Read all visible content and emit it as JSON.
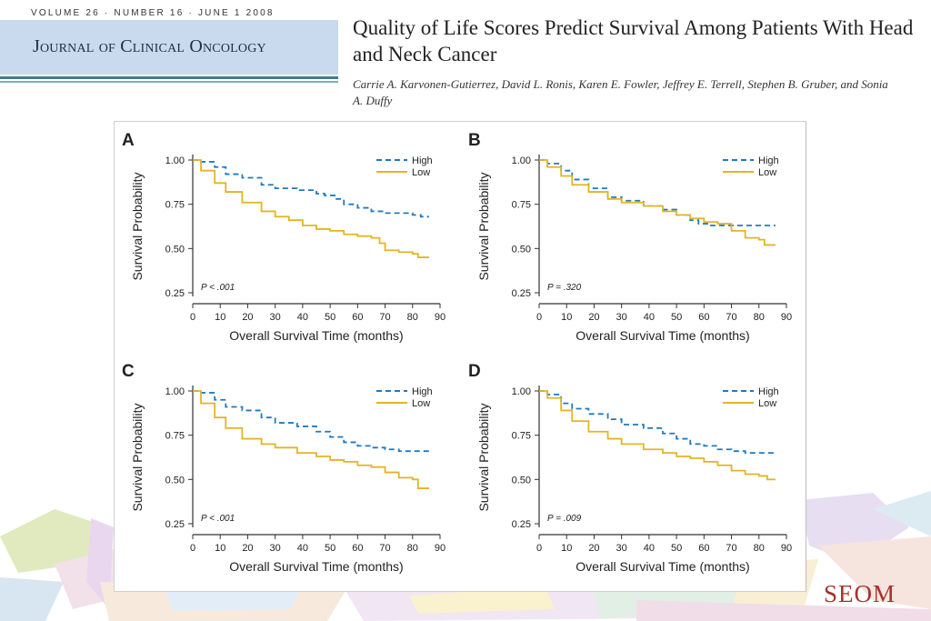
{
  "header": {
    "issue_line": "VOLUME 26 · NUMBER 16 · JUNE 1 2008",
    "journal_name": "Journal of Clinical Oncology"
  },
  "article": {
    "title": "Quality of Life Scores Predict Survival Among Patients With Head and Neck Cancer",
    "authors": "Carrie A. Karvonen-Gutierrez, David L. Ronis, Karen E. Fowler, Jeffrey E. Terrell, Stephen B. Gruber, and Sonia A. Duffy"
  },
  "footer": {
    "logo_text": "SEOM"
  },
  "colors": {
    "high": "#1f79c2",
    "low": "#e4b427",
    "journal_box": "#c9d9ee",
    "logo": "#a5322c"
  },
  "chart_data": [
    {
      "panel": "A",
      "type": "line",
      "xlabel": "Overall Survival Time (months)",
      "ylabel": "Survival Probability",
      "xlim": [
        0,
        90
      ],
      "ylim": [
        0.25,
        1.0
      ],
      "xticks": [
        0,
        10,
        20,
        30,
        40,
        50,
        60,
        70,
        80,
        90
      ],
      "yticks": [
        1.0,
        0.75,
        0.5,
        0.25
      ],
      "legend": "top-right",
      "p_value": "P < .001",
      "series": [
        {
          "name": "High",
          "style": "dashed",
          "x": [
            0,
            3,
            8,
            12,
            18,
            25,
            30,
            38,
            45,
            48,
            52,
            55,
            60,
            65,
            70,
            75,
            80,
            83,
            86
          ],
          "y": [
            1.0,
            0.99,
            0.96,
            0.92,
            0.9,
            0.86,
            0.84,
            0.83,
            0.81,
            0.8,
            0.78,
            0.75,
            0.73,
            0.71,
            0.7,
            0.7,
            0.69,
            0.68,
            0.68
          ]
        },
        {
          "name": "Low",
          "style": "solid",
          "x": [
            0,
            3,
            8,
            12,
            18,
            25,
            30,
            35,
            40,
            45,
            50,
            55,
            60,
            65,
            68,
            70,
            75,
            80,
            82,
            86
          ],
          "y": [
            1.0,
            0.94,
            0.87,
            0.82,
            0.76,
            0.71,
            0.68,
            0.66,
            0.63,
            0.61,
            0.6,
            0.58,
            0.57,
            0.56,
            0.53,
            0.49,
            0.48,
            0.47,
            0.45,
            0.45
          ]
        }
      ]
    },
    {
      "panel": "B",
      "type": "line",
      "xlabel": "Overall Survival Time (months)",
      "ylabel": "Survival Probability",
      "xlim": [
        0,
        90
      ],
      "ylim": [
        0.25,
        1.0
      ],
      "xticks": [
        0,
        10,
        20,
        30,
        40,
        50,
        60,
        70,
        80,
        90
      ],
      "yticks": [
        1.0,
        0.75,
        0.5,
        0.25
      ],
      "legend": "top-right",
      "p_value": "P = .320",
      "series": [
        {
          "name": "High",
          "style": "dashed",
          "x": [
            0,
            3,
            8,
            12,
            18,
            25,
            30,
            38,
            45,
            50,
            55,
            58,
            62,
            70,
            80,
            86
          ],
          "y": [
            1.0,
            0.98,
            0.94,
            0.89,
            0.84,
            0.79,
            0.77,
            0.74,
            0.72,
            0.69,
            0.66,
            0.64,
            0.63,
            0.63,
            0.63,
            0.63
          ]
        },
        {
          "name": "Low",
          "style": "solid",
          "x": [
            0,
            3,
            8,
            12,
            18,
            25,
            30,
            38,
            45,
            50,
            55,
            60,
            65,
            70,
            75,
            80,
            82,
            86
          ],
          "y": [
            1.0,
            0.96,
            0.91,
            0.86,
            0.82,
            0.78,
            0.76,
            0.74,
            0.71,
            0.69,
            0.67,
            0.65,
            0.64,
            0.6,
            0.56,
            0.55,
            0.52,
            0.52
          ]
        }
      ]
    },
    {
      "panel": "C",
      "type": "line",
      "xlabel": "Overall Survival Time (months)",
      "ylabel": "Survival Probability",
      "xlim": [
        0,
        90
      ],
      "ylim": [
        0.25,
        1.0
      ],
      "xticks": [
        0,
        10,
        20,
        30,
        40,
        50,
        60,
        70,
        80,
        90
      ],
      "yticks": [
        1.0,
        0.75,
        0.5,
        0.25
      ],
      "legend": "top-right",
      "p_value": "P < .001",
      "series": [
        {
          "name": "High",
          "style": "dashed",
          "x": [
            0,
            3,
            8,
            12,
            18,
            25,
            30,
            38,
            45,
            50,
            55,
            60,
            65,
            70,
            75,
            80,
            86
          ],
          "y": [
            1.0,
            0.99,
            0.95,
            0.91,
            0.89,
            0.85,
            0.82,
            0.8,
            0.77,
            0.74,
            0.71,
            0.69,
            0.68,
            0.67,
            0.66,
            0.66,
            0.66
          ]
        },
        {
          "name": "Low",
          "style": "solid",
          "x": [
            0,
            3,
            8,
            12,
            18,
            25,
            30,
            38,
            45,
            50,
            55,
            60,
            65,
            70,
            75,
            80,
            82,
            86
          ],
          "y": [
            1.0,
            0.93,
            0.85,
            0.79,
            0.73,
            0.7,
            0.68,
            0.65,
            0.63,
            0.61,
            0.6,
            0.58,
            0.57,
            0.54,
            0.51,
            0.5,
            0.45,
            0.45
          ]
        }
      ]
    },
    {
      "panel": "D",
      "type": "line",
      "xlabel": "Overall Survival Time (months)",
      "ylabel": "Survival Probability",
      "xlim": [
        0,
        90
      ],
      "ylim": [
        0.25,
        1.0
      ],
      "xticks": [
        0,
        10,
        20,
        30,
        40,
        50,
        60,
        70,
        80,
        90
      ],
      "yticks": [
        1.0,
        0.75,
        0.5,
        0.25
      ],
      "legend": "top-right",
      "p_value": "P = .009",
      "series": [
        {
          "name": "High",
          "style": "dashed",
          "x": [
            0,
            3,
            8,
            12,
            18,
            25,
            30,
            38,
            45,
            50,
            55,
            60,
            65,
            70,
            75,
            80,
            86
          ],
          "y": [
            1.0,
            0.98,
            0.93,
            0.9,
            0.87,
            0.84,
            0.81,
            0.79,
            0.76,
            0.73,
            0.7,
            0.69,
            0.67,
            0.66,
            0.65,
            0.65,
            0.64
          ]
        },
        {
          "name": "Low",
          "style": "solid",
          "x": [
            0,
            3,
            8,
            12,
            18,
            25,
            30,
            38,
            45,
            50,
            55,
            60,
            65,
            70,
            75,
            80,
            83,
            86
          ],
          "y": [
            1.0,
            0.96,
            0.89,
            0.83,
            0.77,
            0.73,
            0.7,
            0.67,
            0.65,
            0.63,
            0.62,
            0.6,
            0.58,
            0.55,
            0.53,
            0.52,
            0.5,
            0.5
          ]
        }
      ]
    }
  ]
}
